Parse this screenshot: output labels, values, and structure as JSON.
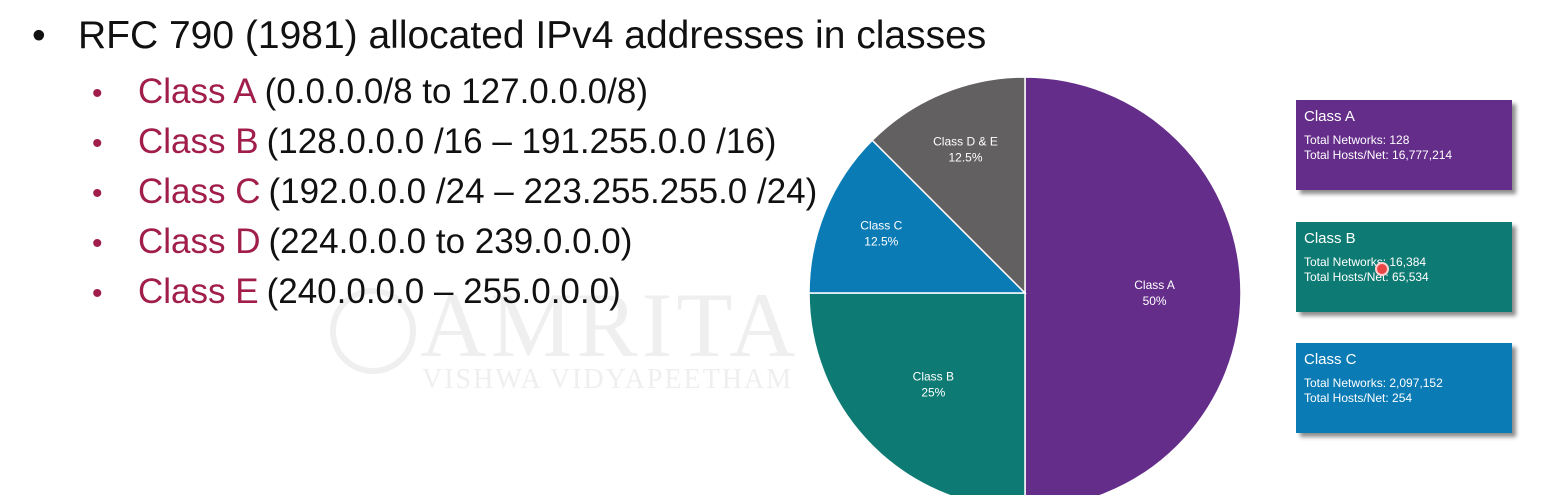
{
  "watermark": {
    "main": "AMRITA",
    "sub": "VISHWA VIDYAPEETHAM"
  },
  "slide": {
    "heading": "RFC 790 (1981) allocated IPv4 addresses in classes",
    "bullet_char": "•",
    "classes": [
      {
        "name": "Class A",
        "range": "(0.0.0.0/8 to 127.0.0.0/8)"
      },
      {
        "name": "Class B",
        "range": "(128.0.0.0 /16 – 191.255.0.0 /16)"
      },
      {
        "name": "Class C",
        "range": "(192.0.0.0 /24 – 223.255.255.0 /24)"
      },
      {
        "name": "Class D",
        "range": "(224.0.0.0 to 239.0.0.0)"
      },
      {
        "name": "Class E",
        "range": "(240.0.0.0 – 255.0.0.0)"
      }
    ]
  },
  "chart_data": {
    "type": "pie",
    "slices": [
      {
        "name": "Class A",
        "value": 50,
        "label": "50%",
        "color": "#652d8a"
      },
      {
        "name": "Class B",
        "value": 25,
        "label": "25%",
        "color": "#0d7b73"
      },
      {
        "name": "Class C",
        "value": 12.5,
        "label": "12.5%",
        "color": "#0b7bb5"
      },
      {
        "name": "Class D & E",
        "value": 12.5,
        "label": "12.5%",
        "color": "#636061"
      }
    ]
  },
  "cards": [
    {
      "title": "Class A",
      "networks": "Total Networks: 128",
      "hosts": "Total Hosts/Net: 16,777,214",
      "color": "#652d8a"
    },
    {
      "title": "Class B",
      "networks": "Total Networks: 16,384",
      "hosts": "Total Hosts/Net: 65,534",
      "color": "#0d7b73"
    },
    {
      "title": "Class C",
      "networks": "Total Networks: 2,097,152",
      "hosts": "Total Hosts/Net: 254",
      "color": "#0b7bb5"
    }
  ]
}
